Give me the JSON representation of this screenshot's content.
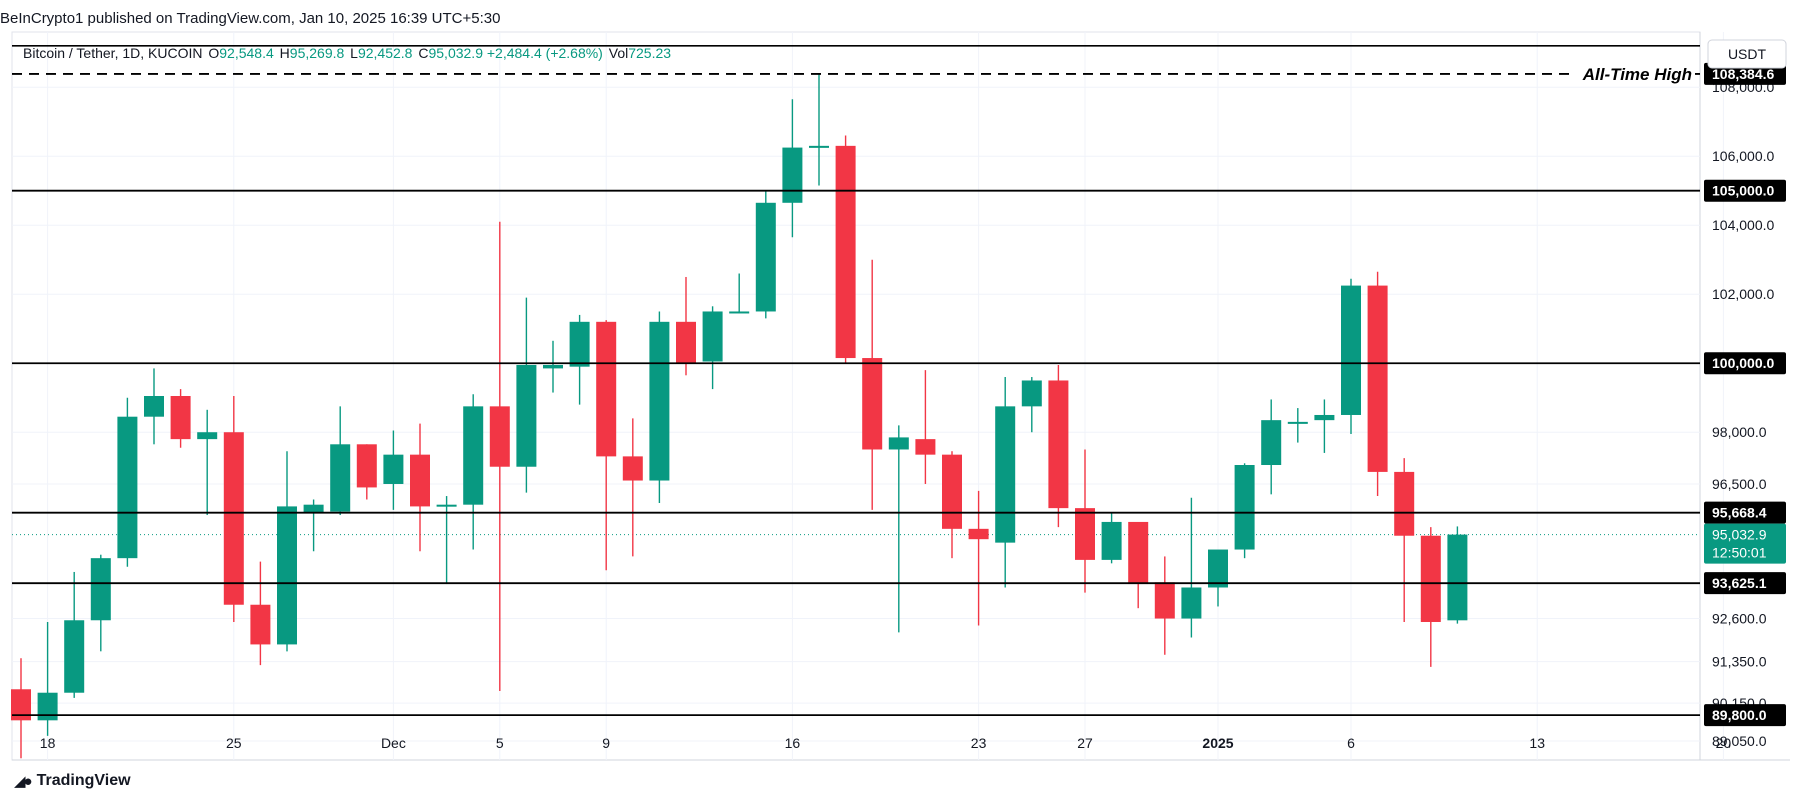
{
  "header": {
    "publisher_line": "BeInCrypto1 published on TradingView.com, Jan 10, 2025 16:39 UTC+5:30"
  },
  "legend": {
    "symbol": "Bitcoin / Tether, 1D, KUCOIN",
    "o_label": "O",
    "o_value": "92,548.4",
    "h_label": "H",
    "h_value": "95,269.8",
    "l_label": "L",
    "l_value": "92,452.8",
    "c_label": "C",
    "c_value": "95,032.9",
    "change": "+2,484.4 (+2.68%)",
    "vol_label": "Vol",
    "vol_value": "725.23"
  },
  "footer": {
    "brand": "TradingView",
    "logo_icon": "tradingview-logo-icon"
  },
  "colors": {
    "up": "#089981",
    "down": "#f23645",
    "grid": "#f0f3fa",
    "level": "#000000",
    "axis_text": "#131722",
    "price_tag": "#089981"
  },
  "chart_data": {
    "type": "candlestick",
    "title": "Bitcoin / Tether, 1D, KUCOIN",
    "currency_label": "USDT",
    "ylim": [
      88500,
      109600
    ],
    "y_ticks": [
      {
        "value": 108000,
        "label": "108,000.0"
      },
      {
        "value": 106000,
        "label": "106,000.0"
      },
      {
        "value": 104000,
        "label": "104,000.0"
      },
      {
        "value": 102000,
        "label": "102,000.0"
      },
      {
        "value": 98000,
        "label": "98,000.0"
      },
      {
        "value": 96500,
        "label": "96,500.0"
      },
      {
        "value": 92600,
        "label": "92,600.0"
      },
      {
        "value": 91350,
        "label": "91,350.0"
      },
      {
        "value": 90150,
        "label": "90,150.0"
      },
      {
        "value": 89050,
        "label": "89,050.0"
      }
    ],
    "x_ticks": [
      {
        "index": 1,
        "label": "18",
        "bold": false
      },
      {
        "index": 8,
        "label": "25",
        "bold": false
      },
      {
        "index": 14,
        "label": "Dec",
        "bold": false
      },
      {
        "index": 18,
        "label": "5",
        "bold": false
      },
      {
        "index": 22,
        "label": "9",
        "bold": false
      },
      {
        "index": 29,
        "label": "16",
        "bold": false
      },
      {
        "index": 36,
        "label": "23",
        "bold": false
      },
      {
        "index": 40,
        "label": "27",
        "bold": false
      },
      {
        "index": 45,
        "label": "2025",
        "bold": true
      },
      {
        "index": 50,
        "label": "6",
        "bold": false
      },
      {
        "index": 57,
        "label": "13",
        "bold": false
      },
      {
        "index": 64,
        "label": "20",
        "bold": false
      }
    ],
    "levels": [
      {
        "value": 108384.6,
        "label": "108,384.6",
        "style": "dashed",
        "annotation": "All-Time High"
      },
      {
        "value": 105000.0,
        "label": "105,000.0",
        "style": "solid",
        "annotation": ""
      },
      {
        "value": 100000.0,
        "label": "100,000.0",
        "style": "solid",
        "annotation": ""
      },
      {
        "value": 95668.4,
        "label": "95,668.4",
        "style": "solid",
        "annotation": ""
      },
      {
        "value": 93625.1,
        "label": "93,625.1",
        "style": "solid",
        "annotation": ""
      },
      {
        "value": 89800.0,
        "label": "89,800.0",
        "style": "solid",
        "annotation": ""
      }
    ],
    "top_line": {
      "value": 109200
    },
    "last_price": {
      "value": 95032.9,
      "label": "95,032.9",
      "countdown": "12:50:01"
    },
    "candles": [
      {
        "i": 0,
        "o": 90550,
        "h": 91450,
        "l": 88550,
        "c": 89650
      },
      {
        "i": 1,
        "o": 89650,
        "h": 92500,
        "l": 89200,
        "c": 90450
      },
      {
        "i": 2,
        "o": 90450,
        "h": 93950,
        "l": 90300,
        "c": 92550
      },
      {
        "i": 3,
        "o": 92550,
        "h": 94450,
        "l": 91650,
        "c": 94350
      },
      {
        "i": 4,
        "o": 94350,
        "h": 99000,
        "l": 94100,
        "c": 98450
      },
      {
        "i": 5,
        "o": 98450,
        "h": 99850,
        "l": 97650,
        "c": 99050
      },
      {
        "i": 6,
        "o": 99050,
        "h": 99250,
        "l": 97550,
        "c": 97800
      },
      {
        "i": 7,
        "o": 97800,
        "h": 98650,
        "l": 95600,
        "c": 98000
      },
      {
        "i": 8,
        "o": 98000,
        "h": 99050,
        "l": 92500,
        "c": 93000
      },
      {
        "i": 9,
        "o": 93000,
        "h": 94250,
        "l": 91250,
        "c": 91850
      },
      {
        "i": 10,
        "o": 91850,
        "h": 97450,
        "l": 91650,
        "c": 95850
      },
      {
        "i": 11,
        "o": 95650,
        "h": 96050,
        "l": 94550,
        "c": 95900
      },
      {
        "i": 12,
        "o": 95700,
        "h": 98750,
        "l": 95600,
        "c": 97650
      },
      {
        "i": 13,
        "o": 97650,
        "h": 97650,
        "l": 96050,
        "c": 96400
      },
      {
        "i": 14,
        "o": 96500,
        "h": 98050,
        "l": 95750,
        "c": 97350
      },
      {
        "i": 15,
        "o": 97350,
        "h": 98250,
        "l": 94550,
        "c": 95850
      },
      {
        "i": 16,
        "o": 95850,
        "h": 96150,
        "l": 93600,
        "c": 95900
      },
      {
        "i": 17,
        "o": 95900,
        "h": 99100,
        "l": 94600,
        "c": 98750
      },
      {
        "i": 18,
        "o": 98750,
        "h": 104100,
        "l": 90500,
        "c": 97000
      },
      {
        "i": 19,
        "o": 97000,
        "h": 101900,
        "l": 96250,
        "c": 99950
      },
      {
        "i": 20,
        "o": 99850,
        "h": 100650,
        "l": 99150,
        "c": 99950
      },
      {
        "i": 21,
        "o": 99900,
        "h": 101400,
        "l": 98800,
        "c": 101200
      },
      {
        "i": 22,
        "o": 101200,
        "h": 101250,
        "l": 94000,
        "c": 97300
      },
      {
        "i": 23,
        "o": 97300,
        "h": 98400,
        "l": 94400,
        "c": 96600
      },
      {
        "i": 24,
        "o": 96600,
        "h": 101500,
        "l": 95950,
        "c": 101200
      },
      {
        "i": 25,
        "o": 101200,
        "h": 102500,
        "l": 99650,
        "c": 100000
      },
      {
        "i": 26,
        "o": 100050,
        "h": 101650,
        "l": 99250,
        "c": 101500
      },
      {
        "i": 27,
        "o": 101500,
        "h": 102600,
        "l": 101450,
        "c": 101500
      },
      {
        "i": 28,
        "o": 101500,
        "h": 105000,
        "l": 101300,
        "c": 104650
      },
      {
        "i": 29,
        "o": 104650,
        "h": 107650,
        "l": 103650,
        "c": 106250
      },
      {
        "i": 30,
        "o": 106250,
        "h": 108384.6,
        "l": 105150,
        "c": 106300
      },
      {
        "i": 31,
        "o": 106300,
        "h": 106600,
        "l": 100000,
        "c": 100150
      },
      {
        "i": 32,
        "o": 100150,
        "h": 103000,
        "l": 95750,
        "c": 97500
      },
      {
        "i": 33,
        "o": 97500,
        "h": 98200,
        "l": 92200,
        "c": 97850
      },
      {
        "i": 34,
        "o": 97800,
        "h": 99800,
        "l": 96500,
        "c": 97350
      },
      {
        "i": 35,
        "o": 97350,
        "h": 97450,
        "l": 94350,
        "c": 95200
      },
      {
        "i": 36,
        "o": 95200,
        "h": 96300,
        "l": 92400,
        "c": 94900
      },
      {
        "i": 37,
        "o": 94800,
        "h": 99600,
        "l": 93500,
        "c": 98750
      },
      {
        "i": 38,
        "o": 98750,
        "h": 99600,
        "l": 98000,
        "c": 99500
      },
      {
        "i": 39,
        "o": 99500,
        "h": 99950,
        "l": 95250,
        "c": 95800
      },
      {
        "i": 40,
        "o": 95800,
        "h": 97500,
        "l": 93350,
        "c": 94300
      },
      {
        "i": 41,
        "o": 94300,
        "h": 95650,
        "l": 94200,
        "c": 95400
      },
      {
        "i": 42,
        "o": 95400,
        "h": 95350,
        "l": 92900,
        "c": 93600
      },
      {
        "i": 43,
        "o": 93650,
        "h": 94400,
        "l": 91550,
        "c": 92600
      },
      {
        "i": 44,
        "o": 92600,
        "h": 96100,
        "l": 92050,
        "c": 93500
      },
      {
        "i": 45,
        "o": 93500,
        "h": 94400,
        "l": 92950,
        "c": 94600
      },
      {
        "i": 46,
        "o": 94600,
        "h": 97100,
        "l": 94350,
        "c": 97050
      },
      {
        "i": 47,
        "o": 97050,
        "h": 98950,
        "l": 96200,
        "c": 98350
      },
      {
        "i": 48,
        "o": 98250,
        "h": 98700,
        "l": 97700,
        "c": 98300
      },
      {
        "i": 49,
        "o": 98350,
        "h": 98950,
        "l": 97400,
        "c": 98500
      },
      {
        "i": 50,
        "o": 98500,
        "h": 102450,
        "l": 97950,
        "c": 102250
      },
      {
        "i": 51,
        "o": 102250,
        "h": 102650,
        "l": 96150,
        "c": 96850
      },
      {
        "i": 52,
        "o": 96850,
        "h": 97250,
        "l": 92500,
        "c": 95000
      },
      {
        "i": 53,
        "o": 95000,
        "h": 95250,
        "l": 91200,
        "c": 92500
      },
      {
        "i": 54,
        "o": 92548.4,
        "h": 95269.8,
        "l": 92452.8,
        "c": 95032.9
      }
    ]
  }
}
